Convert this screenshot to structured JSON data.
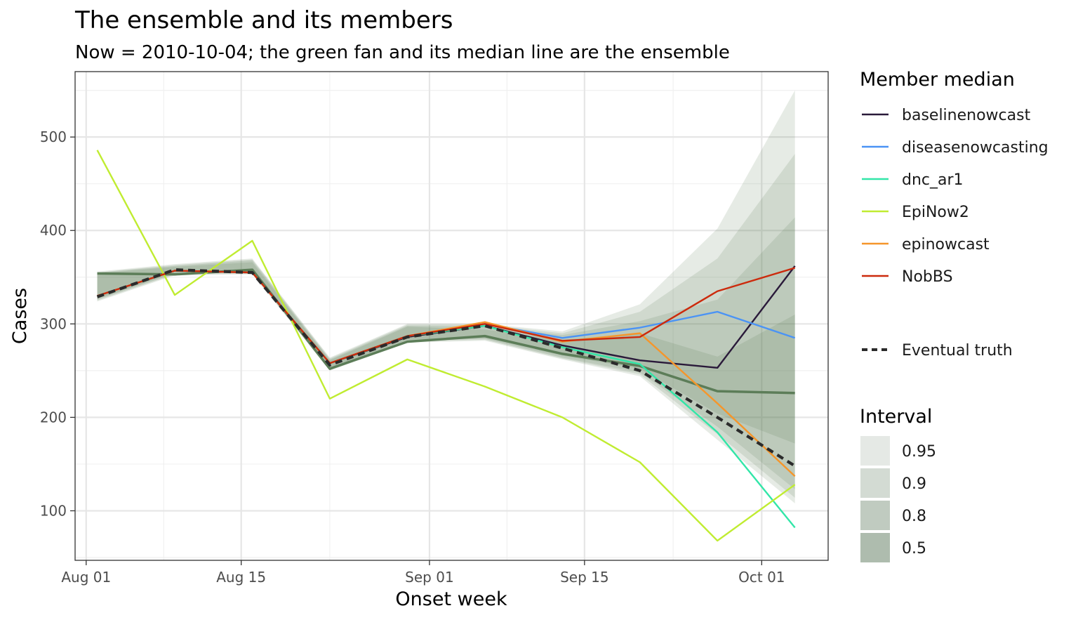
{
  "chart_data": {
    "type": "line",
    "title": "The ensemble and its members",
    "subtitle": "Now = 2010-10-04; the green fan and its median line are the ensemble",
    "xlabel": "Onset week",
    "ylabel": "Cases",
    "x": [
      "2010-08-02",
      "2010-08-09",
      "2010-08-16",
      "2010-08-23",
      "2010-08-30",
      "2010-09-06",
      "2010-09-13",
      "2010-09-20",
      "2010-09-27",
      "2010-10-04"
    ],
    "xlim": [
      "2010-07-31",
      "2010-10-07"
    ],
    "ylim": [
      47,
      570
    ],
    "x_ticks": [
      {
        "date": "2010-08-01",
        "label": "Aug 01"
      },
      {
        "date": "2010-08-15",
        "label": "Aug 15"
      },
      {
        "date": "2010-09-01",
        "label": "Sep 01"
      },
      {
        "date": "2010-09-15",
        "label": "Sep 15"
      },
      {
        "date": "2010-10-01",
        "label": "Oct 01"
      }
    ],
    "x_minor_ticks": [
      "2010-08-08",
      "2010-08-23",
      "2010-09-08",
      "2010-09-23"
    ],
    "y_ticks": [
      100,
      200,
      300,
      400,
      500
    ],
    "y_minor_ticks": [
      50,
      150,
      250,
      350,
      450,
      550
    ],
    "grid": true,
    "legend_position": "right",
    "ensemble": {
      "median": [
        354,
        353,
        358,
        252,
        281,
        287,
        268,
        255,
        228,
        226
      ],
      "color": "#5c7d58",
      "intervals": [
        {
          "level": "0.95",
          "color": "#e5e9e5",
          "lower": [
            324,
            352,
            353,
            250,
            280,
            282,
            262,
            244,
            176,
            108
          ],
          "upper": [
            356,
            364,
            370,
            264,
            300,
            300,
            292,
            321,
            402,
            550
          ]
        },
        {
          "level": "0.9",
          "color": "#d3dbd3",
          "lower": [
            325,
            353,
            354,
            251,
            281,
            283,
            263,
            246,
            182,
            114
          ],
          "upper": [
            355,
            363,
            369,
            263,
            299,
            299,
            290,
            313,
            370,
            482
          ]
        },
        {
          "level": "0.8",
          "color": "#c0cbc0",
          "lower": [
            326,
            354,
            355,
            251,
            282,
            284,
            264,
            248,
            190,
            123
          ],
          "upper": [
            355,
            362,
            368,
            262,
            298,
            297,
            288,
            303,
            326,
            414
          ]
        },
        {
          "level": "0.5",
          "color": "#aebcae",
          "lower": [
            327,
            355,
            356,
            252,
            283,
            285,
            266,
            252,
            204,
            172
          ],
          "upper": [
            354,
            361,
            366,
            261,
            297,
            294,
            283,
            290,
            265,
            310
          ]
        }
      ]
    },
    "series": [
      {
        "name": "baselinenowcast",
        "color": "#2a1a3a",
        "values": [
          330,
          357,
          355,
          258,
          286,
          298,
          277,
          261,
          253,
          362
        ]
      },
      {
        "name": "diseasenowcasting",
        "color": "#4a93f5",
        "values": [
          330,
          357,
          355,
          258,
          287,
          300,
          285,
          296,
          313,
          285
        ]
      },
      {
        "name": "dnc_ar1",
        "color": "#32e6a8",
        "values": [
          330,
          357,
          355,
          258,
          287,
          298,
          275,
          257,
          184,
          82
        ]
      },
      {
        "name": "EpiNow2",
        "color": "#c0ec31",
        "values": [
          486,
          331,
          389,
          220,
          262,
          233,
          200,
          152,
          68,
          128
        ]
      },
      {
        "name": "epinowcast",
        "color": "#f5962b",
        "values": [
          330,
          357,
          355,
          258,
          287,
          302,
          281,
          290,
          215,
          137
        ]
      },
      {
        "name": "NobBS",
        "color": "#cc2a0c",
        "values": [
          330,
          357,
          355,
          258,
          287,
          300,
          282,
          286,
          335,
          360
        ]
      }
    ],
    "truth": {
      "name": "Eventual truth",
      "color": "#2b2b2b",
      "values": [
        329,
        358,
        355,
        256,
        286,
        298,
        274,
        250,
        200,
        148
      ]
    }
  },
  "legend": {
    "members_title": "Member median",
    "truth_label": "Eventual truth",
    "interval_title": "Interval",
    "interval_labels": [
      "0.95",
      "0.9",
      "0.8",
      "0.5"
    ]
  }
}
